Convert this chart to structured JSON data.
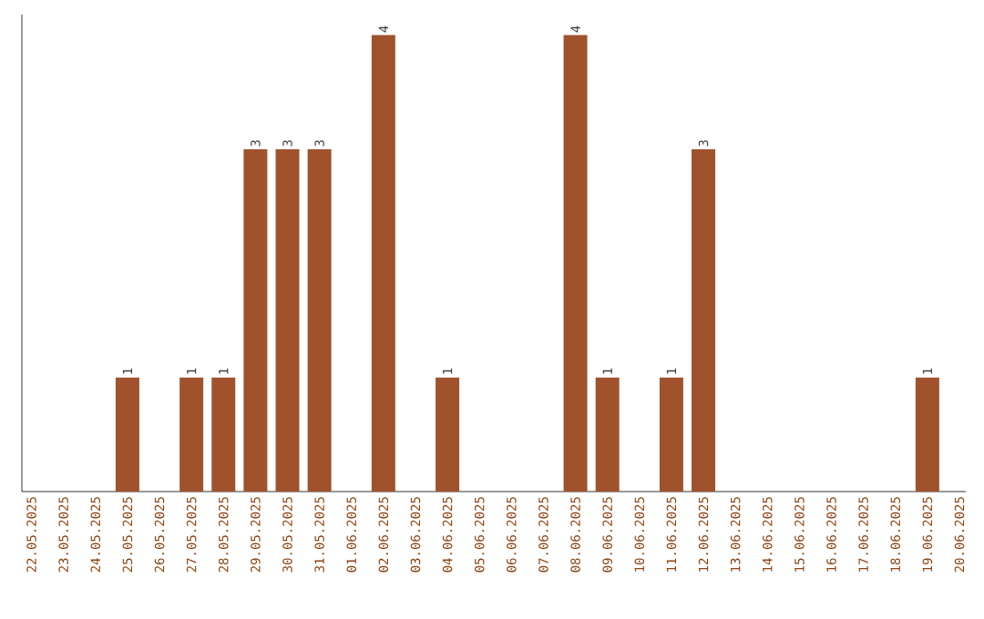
{
  "chart_data": {
    "type": "bar",
    "categories": [
      "22.05.2025",
      "23.05.2025",
      "24.05.2025",
      "25.05.2025",
      "26.05.2025",
      "27.05.2025",
      "28.05.2025",
      "29.05.2025",
      "30.05.2025",
      "31.05.2025",
      "01.06.2025",
      "02.06.2025",
      "03.06.2025",
      "04.06.2025",
      "05.06.2025",
      "06.06.2025",
      "07.06.2025",
      "08.06.2025",
      "09.06.2025",
      "10.06.2025",
      "11.06.2025",
      "12.06.2025",
      "13.06.2025",
      "14.06.2025",
      "15.06.2025",
      "16.06.2025",
      "17.06.2025",
      "18.06.2025",
      "19.06.2025",
      "20.06.2025"
    ],
    "values": [
      0,
      0,
      0,
      1,
      0,
      1,
      1,
      3,
      3,
      3,
      0,
      4,
      0,
      1,
      0,
      0,
      0,
      4,
      1,
      0,
      1,
      3,
      0,
      0,
      0,
      0,
      0,
      0,
      1,
      0
    ],
    "value_labels": [
      null,
      null,
      null,
      "1",
      null,
      "1",
      "1",
      "3",
      "3",
      "3",
      null,
      "4",
      null,
      "1",
      null,
      null,
      null,
      "4",
      "1",
      null,
      "1",
      "3",
      null,
      null,
      null,
      null,
      null,
      null,
      "1",
      null
    ],
    "color": "#a0522d"
  }
}
